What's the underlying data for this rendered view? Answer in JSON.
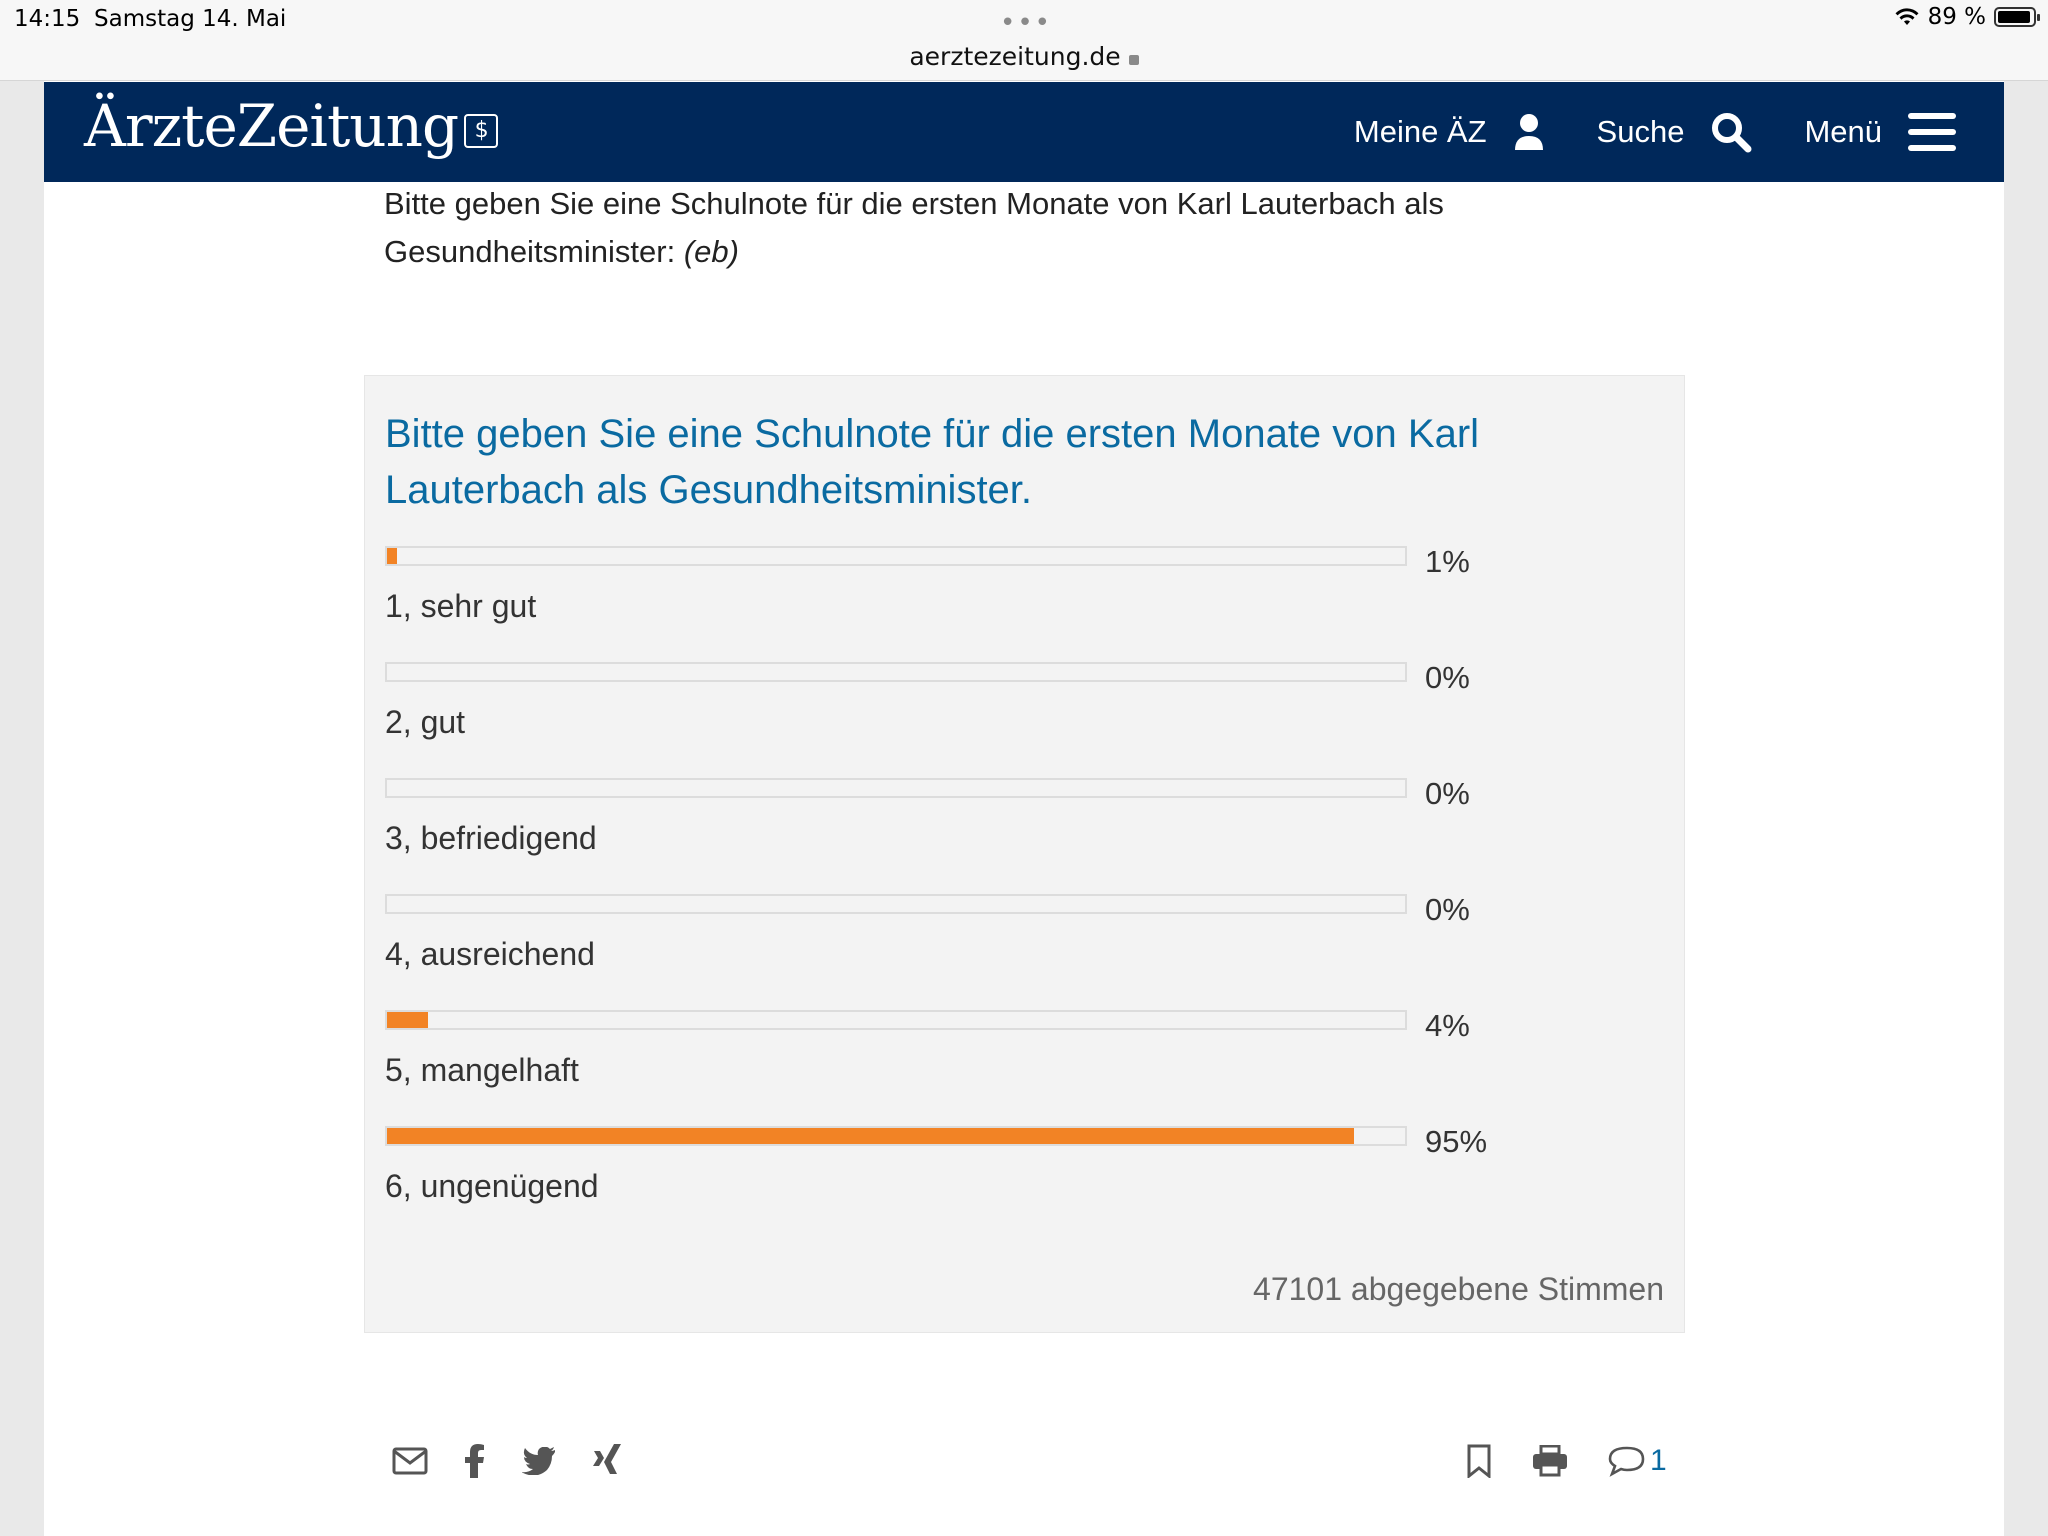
{
  "status_bar": {
    "time": "14:15",
    "date": "Samstag 14. Mai",
    "url": "aerztezeitung.de",
    "battery": "89 %"
  },
  "header": {
    "logo_text": "ÄrzteZeitung",
    "logo_mark": "$",
    "nav": {
      "account_label": "Meine ÄZ",
      "search_label": "Suche",
      "menu_label": "Menü"
    },
    "colors": {
      "background": "#00285a",
      "text": "#ffffff"
    }
  },
  "article": {
    "intro_text": "Bitte geben Sie eine Schulnote für die ersten Monate von Karl Lauterbach als Gesundheitsminister:",
    "intro_author": "(eb)"
  },
  "poll": {
    "question": "Bitte geben Sie eine Schulnote für die ersten Monate von Karl Lauterbach als Gesundheitsminister.",
    "options": [
      {
        "label": "1, sehr gut",
        "percent_text": "1%",
        "percent": 1
      },
      {
        "label": "2, gut",
        "percent_text": "0%",
        "percent": 0
      },
      {
        "label": "3, befriedigend",
        "percent_text": "0%",
        "percent": 0
      },
      {
        "label": "4, ausreichend",
        "percent_text": "0%",
        "percent": 0
      },
      {
        "label": "5, mangelhaft",
        "percent_text": "4%",
        "percent": 4
      },
      {
        "label": "6, ungenügend",
        "percent_text": "95%",
        "percent": 95
      }
    ],
    "votes_text": "47101 abgegebene Stimmen",
    "colors": {
      "bar_fill": "#f28325",
      "question": "#0a6aa1"
    }
  },
  "footer_actions": {
    "share_icons": [
      "mail-icon",
      "facebook-icon",
      "twitter-icon",
      "xing-icon"
    ],
    "action_icons": [
      "bookmark-icon",
      "print-icon",
      "comment-icon"
    ],
    "comment_count": "1"
  }
}
